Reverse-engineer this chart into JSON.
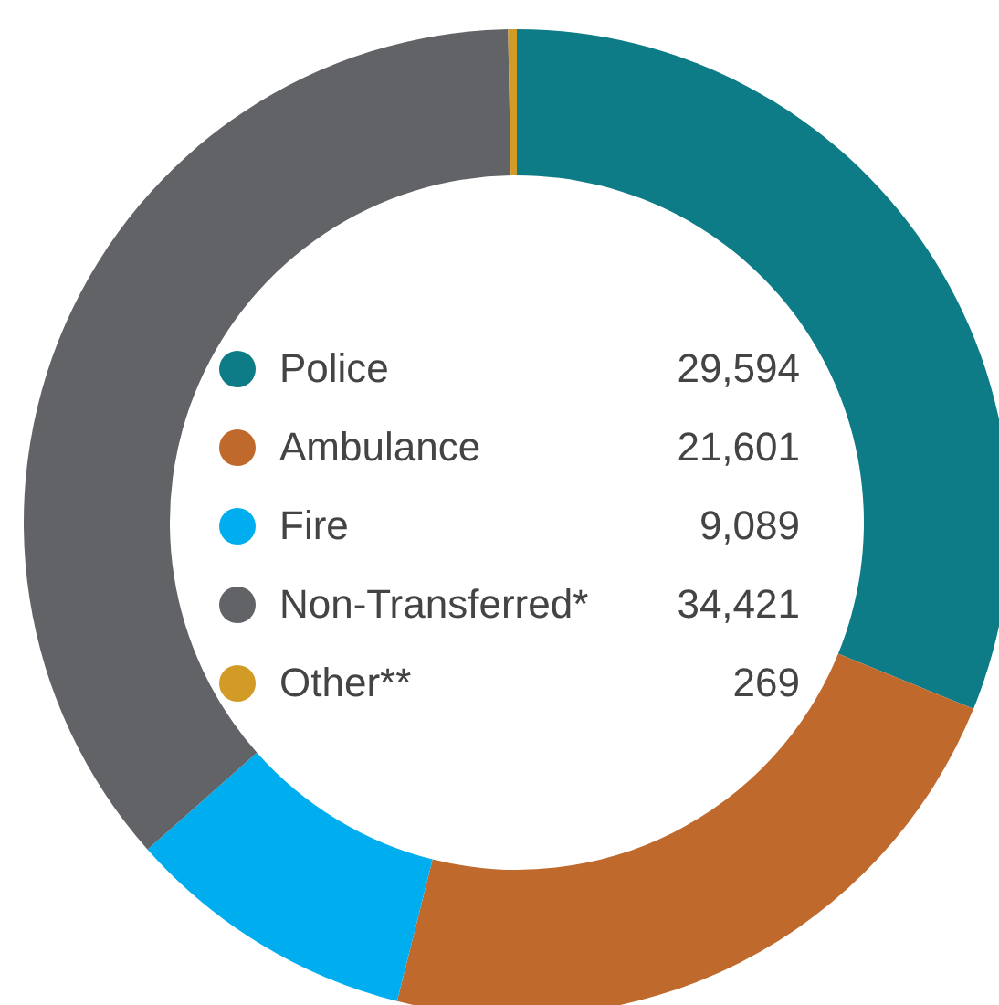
{
  "chart_data": {
    "type": "donut",
    "categories": [
      "Police",
      "Ambulance",
      "Fire",
      "Non-Transferred*",
      "Other**"
    ],
    "values": [
      29594,
      21601,
      9089,
      34421,
      269
    ],
    "colors": [
      "#0e7c86",
      "#c0692c",
      "#00aeef",
      "#626366",
      "#d19b26"
    ],
    "legend": "center",
    "value_labels": [
      "29,594",
      "21,601",
      "9,089",
      "34,421",
      "269"
    ]
  }
}
